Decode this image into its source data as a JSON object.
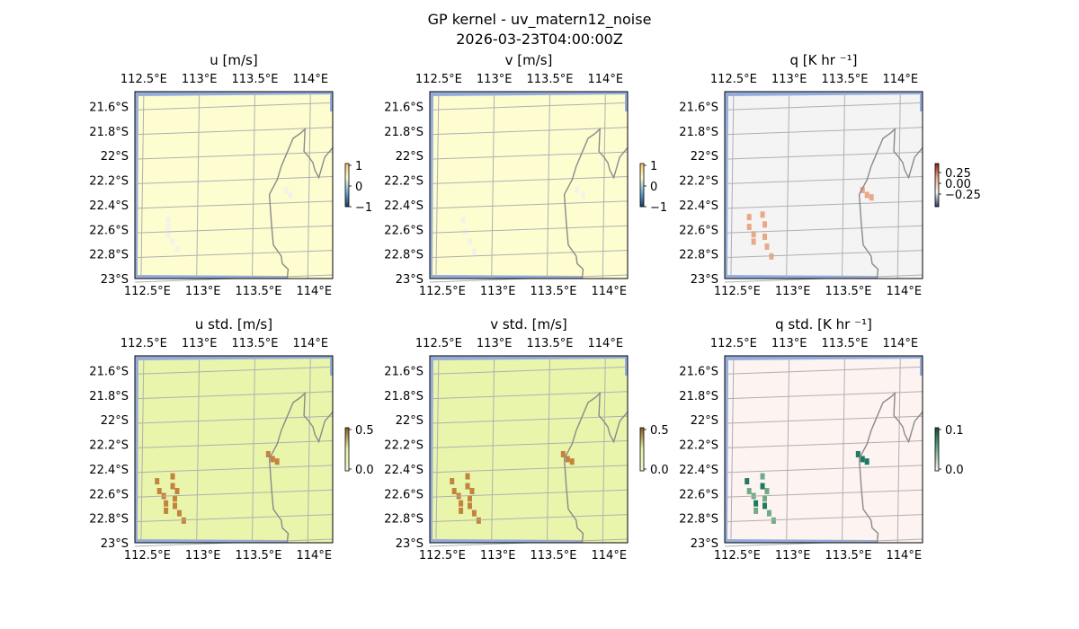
{
  "figure": {
    "title": "GP kernel - uv_matern12_noise",
    "subtitle": "2026-03-23T04:00:00Z"
  },
  "colors": {
    "land": "#b9b9b9",
    "ocean": "#94acdb",
    "coastline": "#8a8a8a",
    "gridline": "#b0b0b0",
    "u_bg": "#fefdd0",
    "u_cells": "#f3f3ea",
    "std_bg": "#e9f5ab",
    "std_cells": "#c4833c",
    "q_bg": "#f4f4f4",
    "q_cells": "#eba888",
    "qstd_bg": "#fdf3f0",
    "qstd_cells_light": "#6fab86",
    "qstd_cells_dark": "#1e7a60"
  },
  "map": {
    "lon_ticks": [
      "112.5°E",
      "113°E",
      "113.5°E",
      "114°E"
    ],
    "lat_ticks": [
      "21.6°S",
      "21.8°S",
      "22°S",
      "22.2°S",
      "22.4°S",
      "22.6°S",
      "22.8°S",
      "23°S"
    ]
  },
  "chart_data": [
    {
      "type": "heatmap",
      "title": "u [m/s]",
      "lon_range": [
        112.42,
        114.2
      ],
      "lat_range": [
        -23.0,
        -21.48
      ],
      "colorbar": {
        "ticks": [
          "1",
          "0",
          "−1"
        ],
        "range": [
          -1,
          1
        ]
      },
      "cells": [
        [
          112.72,
          -22.52
        ],
        [
          112.72,
          -22.58
        ],
        [
          112.72,
          -22.64
        ],
        [
          112.76,
          -22.7
        ],
        [
          112.8,
          -22.76
        ],
        [
          113.78,
          -22.28
        ],
        [
          113.82,
          -22.32
        ]
      ]
    },
    {
      "type": "heatmap",
      "title": "v [m/s]",
      "lon_range": [
        112.42,
        114.2
      ],
      "lat_range": [
        -23.0,
        -21.48
      ],
      "colorbar": {
        "ticks": [
          "1",
          "0",
          "−1"
        ],
        "range": [
          -1,
          1
        ]
      },
      "cells": [
        [
          112.72,
          -22.52
        ],
        [
          112.74,
          -22.62
        ],
        [
          112.78,
          -22.7
        ],
        [
          112.82,
          -22.78
        ],
        [
          113.74,
          -22.28
        ],
        [
          113.8,
          -22.32
        ]
      ]
    },
    {
      "type": "heatmap",
      "title": "q [K hr ⁻¹]",
      "lon_range": [
        112.42,
        114.2
      ],
      "lat_range": [
        -23.0,
        -21.48
      ],
      "colorbar": {
        "ticks": [
          "0.25",
          "0.00",
          "−0.25"
        ],
        "range": [
          -0.4,
          0.4
        ]
      },
      "cells": [
        [
          112.64,
          -22.5
        ],
        [
          112.64,
          -22.58
        ],
        [
          112.68,
          -22.64
        ],
        [
          112.68,
          -22.7
        ],
        [
          112.76,
          -22.48
        ],
        [
          112.78,
          -22.56
        ],
        [
          112.78,
          -22.66
        ],
        [
          112.8,
          -22.74
        ],
        [
          112.84,
          -22.82
        ],
        [
          113.66,
          -22.28
        ],
        [
          113.7,
          -22.32
        ],
        [
          113.74,
          -22.34
        ]
      ]
    },
    {
      "type": "heatmap",
      "title": "u std. [m/s]",
      "lon_range": [
        112.42,
        114.2
      ],
      "lat_range": [
        -23.0,
        -21.48
      ],
      "colorbar": {
        "ticks": [
          "0.5",
          "0.0"
        ],
        "range": [
          0,
          0.5
        ]
      },
      "cells": [
        [
          112.62,
          -22.5
        ],
        [
          112.64,
          -22.58
        ],
        [
          112.68,
          -22.62
        ],
        [
          112.7,
          -22.68
        ],
        [
          112.7,
          -22.74
        ],
        [
          112.76,
          -22.46
        ],
        [
          112.76,
          -22.54
        ],
        [
          112.8,
          -22.58
        ],
        [
          112.78,
          -22.64
        ],
        [
          112.78,
          -22.7
        ],
        [
          112.82,
          -22.76
        ],
        [
          112.86,
          -22.82
        ],
        [
          113.62,
          -22.28
        ],
        [
          113.66,
          -22.32
        ],
        [
          113.7,
          -22.34
        ]
      ]
    },
    {
      "type": "heatmap",
      "title": "v std. [m/s]",
      "lon_range": [
        112.42,
        114.2
      ],
      "lat_range": [
        -23.0,
        -21.48
      ],
      "colorbar": {
        "ticks": [
          "0.5",
          "0.0"
        ],
        "range": [
          0,
          0.5
        ]
      },
      "cells": [
        [
          112.62,
          -22.5
        ],
        [
          112.64,
          -22.58
        ],
        [
          112.68,
          -22.62
        ],
        [
          112.7,
          -22.68
        ],
        [
          112.7,
          -22.74
        ],
        [
          112.76,
          -22.46
        ],
        [
          112.76,
          -22.54
        ],
        [
          112.8,
          -22.58
        ],
        [
          112.78,
          -22.64
        ],
        [
          112.78,
          -22.7
        ],
        [
          112.82,
          -22.76
        ],
        [
          112.86,
          -22.82
        ],
        [
          113.62,
          -22.28
        ],
        [
          113.66,
          -22.32
        ],
        [
          113.7,
          -22.34
        ]
      ]
    },
    {
      "type": "heatmap",
      "title": "q std. [K hr ⁻¹]",
      "lon_range": [
        112.42,
        114.2
      ],
      "lat_range": [
        -23.0,
        -21.48
      ],
      "colorbar": {
        "ticks": [
          "0.1",
          "0.0"
        ],
        "range": [
          0,
          0.1
        ]
      },
      "cells": [
        [
          112.62,
          -22.5
        ],
        [
          112.64,
          -22.58
        ],
        [
          112.68,
          -22.62
        ],
        [
          112.7,
          -22.68
        ],
        [
          112.7,
          -22.74
        ],
        [
          112.76,
          -22.46
        ],
        [
          112.76,
          -22.54
        ],
        [
          112.8,
          -22.58
        ],
        [
          112.78,
          -22.64
        ],
        [
          112.78,
          -22.7
        ],
        [
          112.82,
          -22.76
        ],
        [
          112.86,
          -22.82
        ],
        [
          113.62,
          -22.28
        ],
        [
          113.66,
          -22.32
        ],
        [
          113.7,
          -22.34
        ]
      ]
    }
  ]
}
